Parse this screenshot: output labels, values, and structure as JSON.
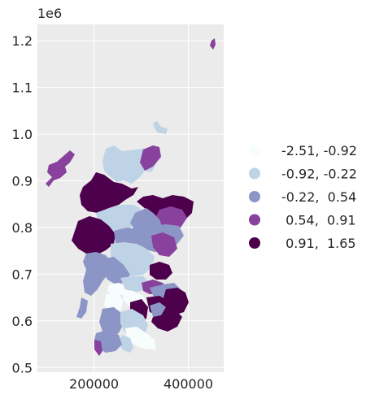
{
  "axis": {
    "offset_label": "1e6",
    "x_ticks": [
      {
        "value": 200000,
        "label": "200000"
      },
      {
        "value": 400000,
        "label": "400000"
      }
    ],
    "y_ticks": [
      {
        "value": 0.5,
        "label": "0.5"
      },
      {
        "value": 0.6,
        "label": "0.6"
      },
      {
        "value": 0.7,
        "label": "0.7"
      },
      {
        "value": 0.8,
        "label": "0.8"
      },
      {
        "value": 0.9,
        "label": "0.9"
      },
      {
        "value": 1.0,
        "label": "1.0"
      },
      {
        "value": 1.1,
        "label": "1.1"
      },
      {
        "value": 1.2,
        "label": "1.2"
      }
    ],
    "x_range": [
      80000,
      475000
    ],
    "y_range": [
      0.49,
      1.235
    ],
    "grid": true,
    "background_color": "#ebebeb",
    "grid_color": "#ffffff"
  },
  "legend": {
    "placement": "right",
    "items": [
      {
        "label": "-2.51, -0.92",
        "color": "#f7fcfd"
      },
      {
        "label": "-0.92, -0.22",
        "color": "#bfd3e6"
      },
      {
        "label": "-0.22,  0.54",
        "color": "#8c96c6"
      },
      {
        "label": " 0.54,  0.91",
        "color": "#88419d"
      },
      {
        "label": " 0.91,  1.65",
        "color": "#4d004b"
      }
    ]
  }
}
